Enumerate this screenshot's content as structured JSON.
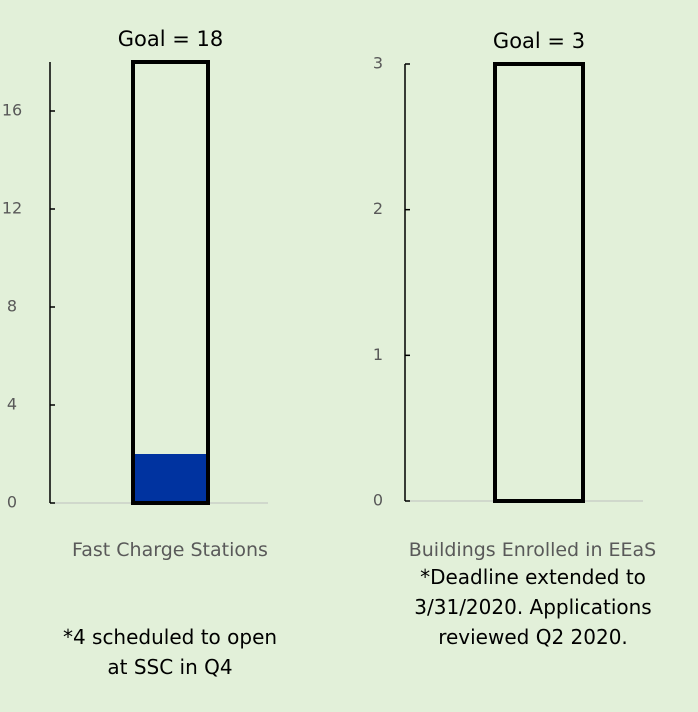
{
  "chart_data": [
    {
      "type": "bar",
      "title": "Goal = 18",
      "categories": [
        "Fast Charge Stations"
      ],
      "values": [
        2
      ],
      "goal": 18,
      "color": "#0033a0",
      "ylim": [
        0,
        18
      ],
      "yticks": [
        0,
        4,
        8,
        12,
        16
      ],
      "note": "*4 scheduled to open at SSC in Q4"
    },
    {
      "type": "bar",
      "title": "Goal = 3",
      "categories": [
        "Buildings Enrolled in EEaS"
      ],
      "values": [
        0
      ],
      "goal": 3,
      "color": "#0033a0",
      "ylim": [
        0,
        3
      ],
      "yticks": [
        0,
        1,
        2,
        3
      ],
      "note": "*Deadline extended to 3/31/2020. Applications reviewed Q2 2020."
    }
  ]
}
